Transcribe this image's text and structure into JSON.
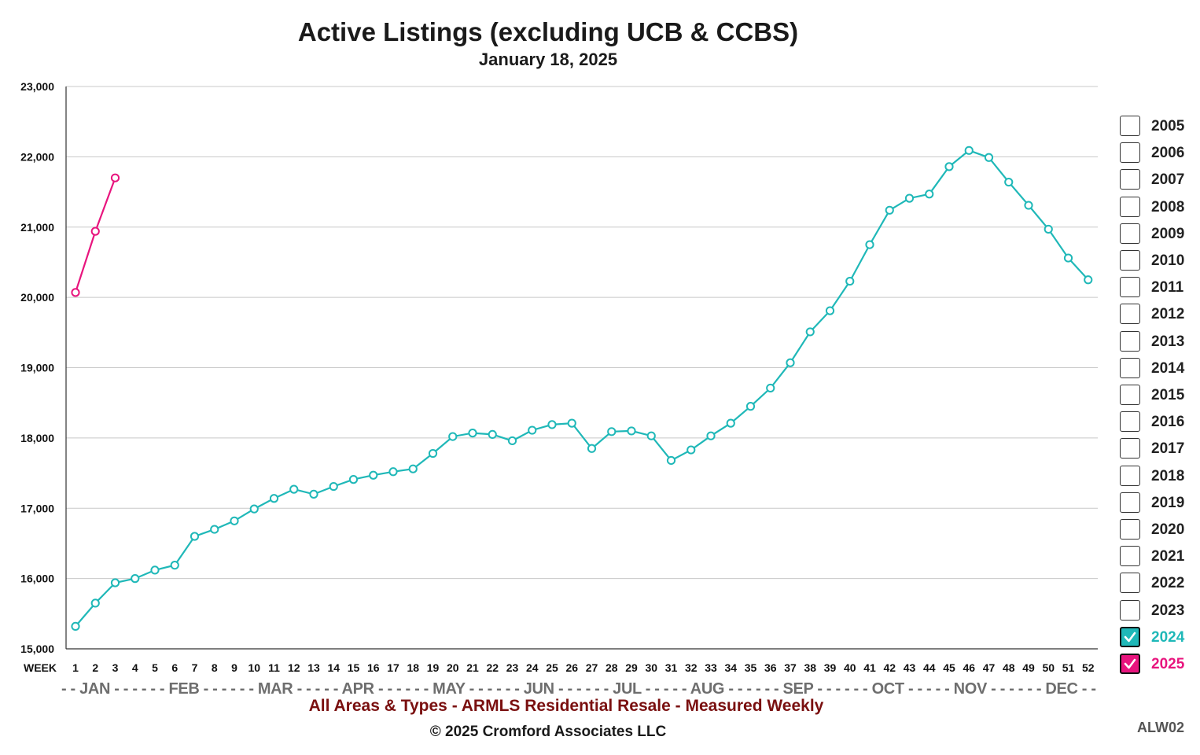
{
  "chart_data": {
    "type": "line",
    "title": "Active Listings (excluding UCB & CCBS)",
    "subtitle": "January 18, 2025",
    "x_axis_label": "WEEK",
    "ylim": [
      15000,
      23000
    ],
    "y_ticks": [
      "15,000",
      "16,000",
      "17,000",
      "18,000",
      "19,000",
      "20,000",
      "21,000",
      "22,000",
      "23,000"
    ],
    "y_tick_values": [
      15000,
      16000,
      17000,
      18000,
      19000,
      20000,
      21000,
      22000,
      23000
    ],
    "weeks": [
      1,
      2,
      3,
      4,
      5,
      6,
      7,
      8,
      9,
      10,
      11,
      12,
      13,
      14,
      15,
      16,
      17,
      18,
      19,
      20,
      21,
      22,
      23,
      24,
      25,
      26,
      27,
      28,
      29,
      30,
      31,
      32,
      33,
      34,
      35,
      36,
      37,
      38,
      39,
      40,
      41,
      42,
      43,
      44,
      45,
      46,
      47,
      48,
      49,
      50,
      51,
      52
    ],
    "month_axis": "- - JAN - - - - - - FEB - - - - - - MAR - - - - - APR - - - - - - MAY - - - - - - JUN - - - - - - JUL - - - - - AUG - - - - - - SEP - - - - - - OCT - - - - - NOV - - - - - - DEC - -",
    "grid": true,
    "legend_position": "right",
    "series": [
      {
        "name": "2024",
        "color": "#1fb8b8",
        "values": [
          15320,
          15650,
          15940,
          16000,
          16120,
          16190,
          16600,
          16700,
          16820,
          16990,
          17140,
          17270,
          17200,
          17310,
          17410,
          17470,
          17520,
          17560,
          17780,
          18020,
          18070,
          18050,
          17960,
          18110,
          18190,
          18210,
          17850,
          18090,
          18100,
          18030,
          17680,
          17830,
          18030,
          18210,
          18450,
          18710,
          19070,
          19510,
          19810,
          20230,
          20750,
          21240,
          21410,
          21470,
          21860,
          22090,
          21990,
          21640,
          21310,
          20970,
          20560,
          20250
        ]
      },
      {
        "name": "2025",
        "color": "#e8157e",
        "values": [
          20070,
          20940,
          21700
        ]
      }
    ]
  },
  "legend": {
    "items": [
      {
        "year": "2005",
        "checked": false
      },
      {
        "year": "2006",
        "checked": false
      },
      {
        "year": "2007",
        "checked": false
      },
      {
        "year": "2008",
        "checked": false
      },
      {
        "year": "2009",
        "checked": false
      },
      {
        "year": "2010",
        "checked": false
      },
      {
        "year": "2011",
        "checked": false
      },
      {
        "year": "2012",
        "checked": false
      },
      {
        "year": "2013",
        "checked": false
      },
      {
        "year": "2014",
        "checked": false
      },
      {
        "year": "2015",
        "checked": false
      },
      {
        "year": "2016",
        "checked": false
      },
      {
        "year": "2017",
        "checked": false
      },
      {
        "year": "2018",
        "checked": false
      },
      {
        "year": "2019",
        "checked": false
      },
      {
        "year": "2020",
        "checked": false
      },
      {
        "year": "2021",
        "checked": false
      },
      {
        "year": "2022",
        "checked": false
      },
      {
        "year": "2023",
        "checked": false
      },
      {
        "year": "2024",
        "checked": true,
        "color": "#1fb8b8"
      },
      {
        "year": "2025",
        "checked": true,
        "color": "#e8157e"
      }
    ]
  },
  "footer": {
    "description": "All Areas & Types - ARMLS Residential Resale - Measured Weekly",
    "copyright": "© 2025 Cromford Associates LLC",
    "code": "ALW02"
  }
}
